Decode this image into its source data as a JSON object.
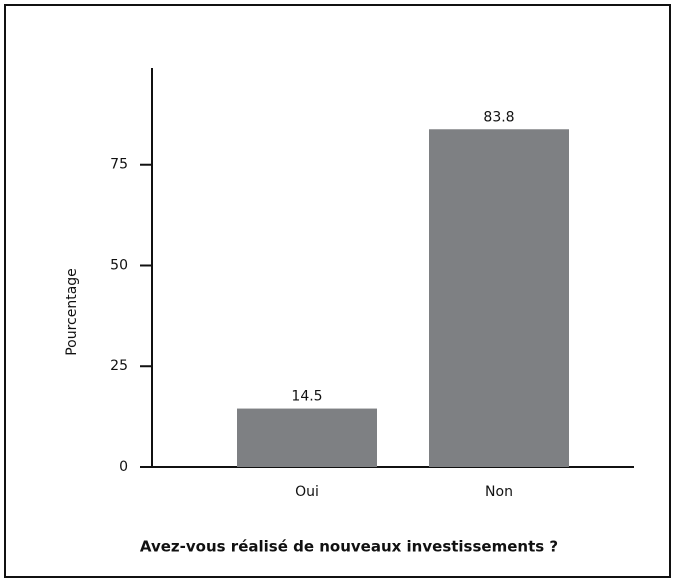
{
  "chart_data": {
    "type": "bar",
    "categories": [
      "Oui",
      "Non"
    ],
    "values": [
      14.5,
      83.8
    ],
    "color": "#7e8083",
    "xlabel": "Avez-vous réalisé de nouveaux investissements ?",
    "ylabel": "Pourcentage",
    "ylim": [
      0,
      99
    ],
    "yticks": [
      0,
      25,
      50,
      75
    ]
  }
}
